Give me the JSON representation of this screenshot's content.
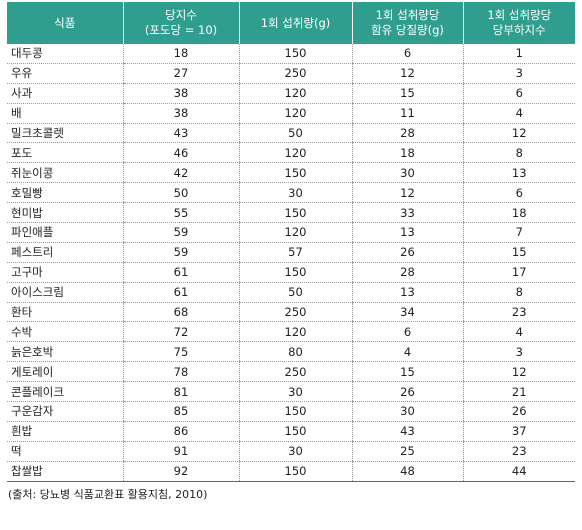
{
  "table": {
    "headers": [
      {
        "line1": "식품",
        "line2": ""
      },
      {
        "line1": "당지수",
        "line2": "(포도당 = 10)"
      },
      {
        "line1": "1회 섭취량(g)",
        "line2": ""
      },
      {
        "line1": "1회 섭취량당",
        "line2": "함유 당질량(g)"
      },
      {
        "line1": "1회 섭취량당",
        "line2": "당부하지수"
      }
    ],
    "rows": [
      [
        "대두콩",
        "18",
        "150",
        "6",
        "1"
      ],
      [
        "우유",
        "27",
        "250",
        "12",
        "3"
      ],
      [
        "사과",
        "38",
        "120",
        "15",
        "6"
      ],
      [
        "배",
        "38",
        "120",
        "11",
        "4"
      ],
      [
        "밀크초콜렛",
        "43",
        "50",
        "28",
        "12"
      ],
      [
        "포도",
        "46",
        "120",
        "18",
        "8"
      ],
      [
        "쥐눈이콩",
        "42",
        "150",
        "30",
        "13"
      ],
      [
        "호밀빵",
        "50",
        "30",
        "12",
        "6"
      ],
      [
        "현미밥",
        "55",
        "150",
        "33",
        "18"
      ],
      [
        "파인애플",
        "59",
        "120",
        "13",
        "7"
      ],
      [
        "페스트리",
        "59",
        "57",
        "26",
        "15"
      ],
      [
        "고구마",
        "61",
        "150",
        "28",
        "17"
      ],
      [
        "아이스크림",
        "61",
        "50",
        "13",
        "8"
      ],
      [
        "환타",
        "68",
        "250",
        "34",
        "23"
      ],
      [
        "수박",
        "72",
        "120",
        "6",
        "4"
      ],
      [
        "늙은호박",
        "75",
        "80",
        "4",
        "3"
      ],
      [
        "게토레이",
        "78",
        "250",
        "15",
        "12"
      ],
      [
        "콘플레이크",
        "81",
        "30",
        "26",
        "21"
      ],
      [
        "구운감자",
        "85",
        "150",
        "30",
        "26"
      ],
      [
        "흰밥",
        "86",
        "150",
        "43",
        "37"
      ],
      [
        "떡",
        "91",
        "30",
        "25",
        "23"
      ],
      [
        "찹쌀밥",
        "92",
        "150",
        "48",
        "44"
      ]
    ]
  },
  "source": "(출처: 당뇨병 식품교환표 활용지침, 2010)"
}
